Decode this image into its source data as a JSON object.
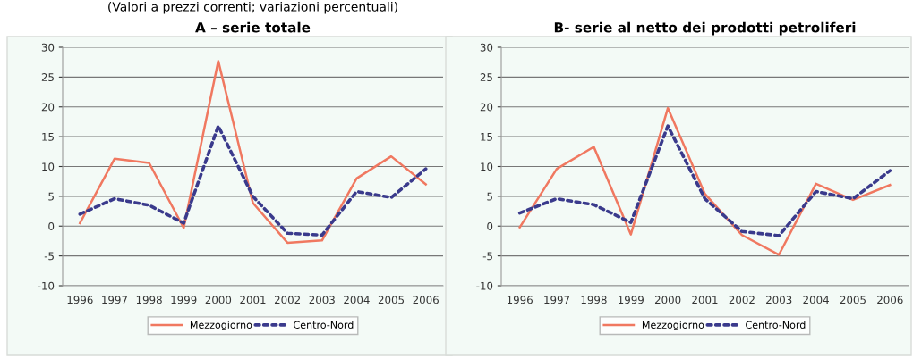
{
  "chart_data": [
    {
      "type": "line",
      "title": "A – serie totale",
      "subtitle": "(Valori a prezzi correnti; variazioni percentuali)",
      "categories": [
        "1996",
        "1997",
        "1998",
        "1999",
        "2000",
        "2001",
        "2002",
        "2003",
        "2004",
        "2005",
        "2006"
      ],
      "series": [
        {
          "name": "Mezzogiorno",
          "color": "#f07860",
          "line_style": "solid",
          "values": [
            0.5,
            11.3,
            10.6,
            -0.3,
            27.7,
            3.9,
            -2.8,
            -2.4,
            8.0,
            11.7,
            7.0
          ]
        },
        {
          "name": "Centro-Nord",
          "color": "#3a3a8c",
          "line_style": "dashed",
          "values": [
            2.0,
            4.6,
            3.5,
            0.5,
            16.8,
            5.0,
            -1.2,
            -1.5,
            5.8,
            4.8,
            9.6
          ]
        }
      ],
      "ylim": [
        -10,
        30
      ],
      "yticks": [
        -10,
        -5,
        0,
        5,
        10,
        15,
        20,
        25,
        30
      ],
      "grid": "y",
      "legend": "bottom",
      "marker": "none"
    },
    {
      "type": "line",
      "title": "B- serie al netto dei prodotti petroliferi",
      "categories": [
        "1996",
        "1997",
        "1998",
        "1999",
        "2000",
        "2001",
        "2002",
        "2003",
        "2004",
        "2005",
        "2006"
      ],
      "series": [
        {
          "name": "Mezzogiorno",
          "color": "#f07860",
          "line_style": "solid",
          "values": [
            -0.2,
            9.6,
            13.3,
            -1.4,
            19.8,
            5.4,
            -1.5,
            -4.8,
            7.1,
            4.4,
            6.9
          ]
        },
        {
          "name": "Centro-Nord",
          "color": "#3a3a8c",
          "line_style": "dashed",
          "values": [
            2.2,
            4.6,
            3.6,
            0.6,
            16.8,
            4.6,
            -0.9,
            -1.6,
            5.8,
            4.6,
            9.3
          ]
        }
      ],
      "ylim": [
        -10,
        30
      ],
      "yticks": [
        -10,
        -5,
        0,
        5,
        10,
        15,
        20,
        25,
        30
      ],
      "grid": "y",
      "legend": "bottom",
      "marker": "none"
    }
  ]
}
